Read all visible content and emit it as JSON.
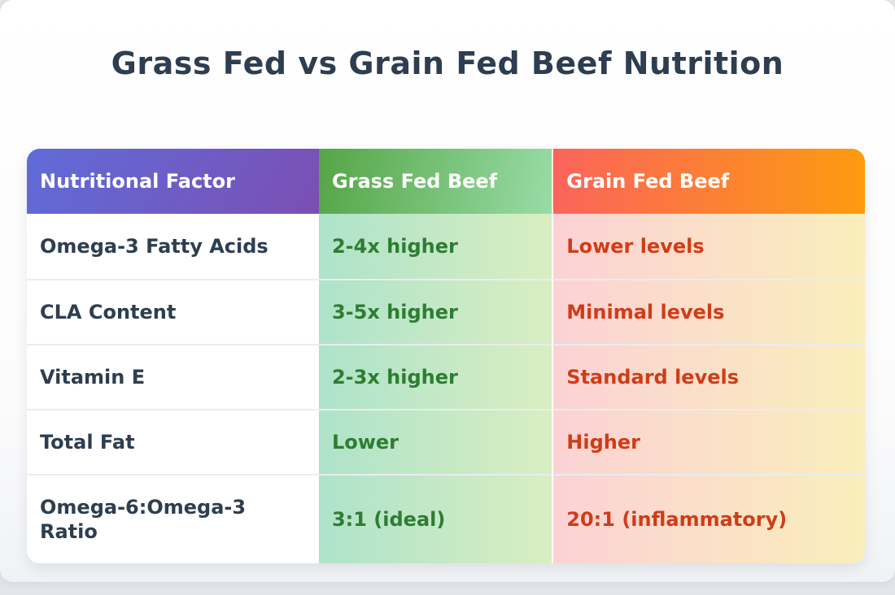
{
  "page": {
    "title": "Grass Fed vs Grain Fed Beef Nutrition"
  },
  "table": {
    "columns": [
      {
        "label": "Nutritional Factor"
      },
      {
        "label": "Grass Fed Beef"
      },
      {
        "label": "Grain Fed Beef"
      }
    ],
    "rows": [
      {
        "factor": "Omega-3 Fatty Acids",
        "grass": "2-4x higher",
        "grain": "Lower levels"
      },
      {
        "factor": "CLA Content",
        "grass": "3-5x higher",
        "grain": "Minimal levels"
      },
      {
        "factor": "Vitamin E",
        "grass": "2-3x higher",
        "grain": "Standard levels"
      },
      {
        "factor": "Total Fat",
        "grass": "Lower",
        "grain": "Higher"
      },
      {
        "factor": "Omega-6:Omega-3\nRatio",
        "grass": "3:1 (ideal)",
        "grain": "20:1 (inflammatory)"
      }
    ]
  },
  "colors": {
    "title_text": "#2d3e50",
    "factor_text": "#2d3e50",
    "grass_text": "#2e7d32",
    "grain_text": "#d03c18",
    "header_factor_gradient": [
      "#5f6cd9",
      "#7b4fb3"
    ],
    "header_grass_gradient": [
      "#55a546",
      "#98dca6"
    ],
    "header_grain_gradient": [
      "#fb645b",
      "#fd9b0f"
    ],
    "body_grass_gradient": [
      "#aee3ca",
      "#d9eec1"
    ],
    "body_grain_gradient": [
      "#fbd2d5",
      "#faeebb"
    ],
    "card_background": "#ffffff",
    "page_background": "#e2e6eb"
  },
  "chart_data": {
    "type": "table",
    "title": "Grass Fed vs Grain Fed Beef Nutrition",
    "columns": [
      "Nutritional Factor",
      "Grass Fed Beef",
      "Grain Fed Beef"
    ],
    "rows": [
      [
        "Omega-3 Fatty Acids",
        "2-4x higher",
        "Lower levels"
      ],
      [
        "CLA Content",
        "3-5x higher",
        "Minimal levels"
      ],
      [
        "Vitamin E",
        "2-3x higher",
        "Standard levels"
      ],
      [
        "Total Fat",
        "Lower",
        "Higher"
      ],
      [
        "Omega-6:Omega-3 Ratio",
        "3:1 (ideal)",
        "20:1 (inflammatory)"
      ]
    ],
    "legend_position": "none",
    "grid": false
  }
}
